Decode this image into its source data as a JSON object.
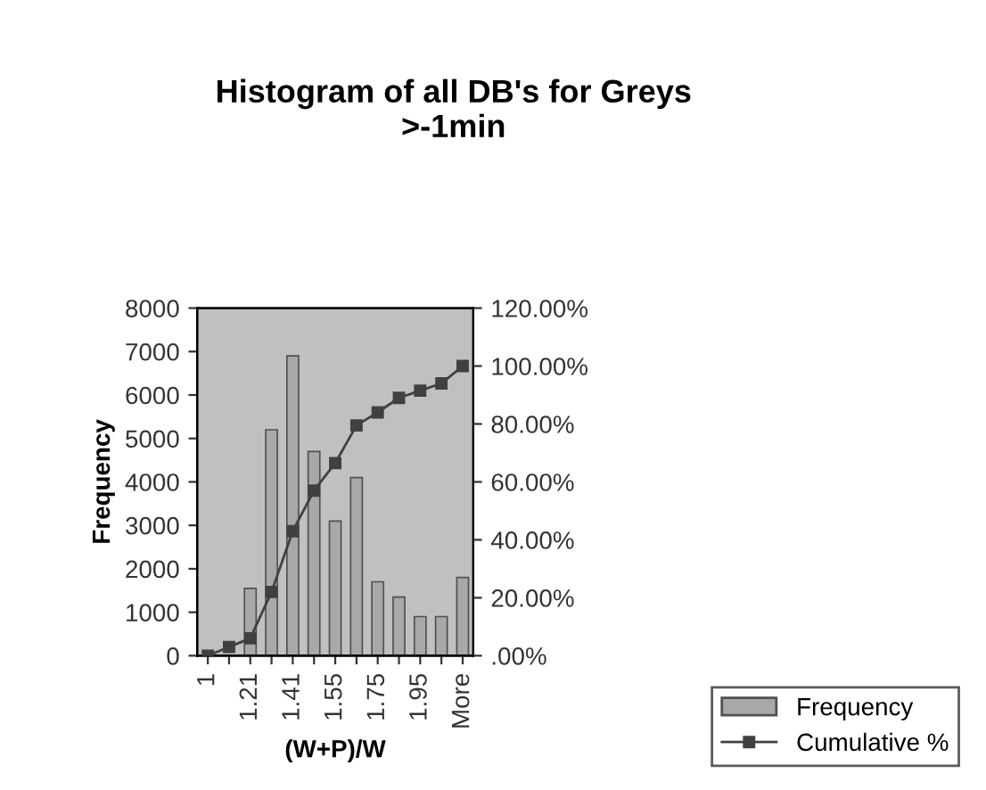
{
  "chart_data": {
    "type": "bar",
    "title": "Histogram of all DB's for Greys\n>-1min",
    "xlabel": "(W+P)/W",
    "ylabel": "Frequency",
    "categories": [
      "1",
      null,
      "1.21",
      null,
      "1.41",
      null,
      "1.55",
      null,
      "1.75",
      null,
      "1.95",
      null,
      "More"
    ],
    "series": [
      {
        "name": "Frequency",
        "color": "#a8a8a8",
        "values": [
          null,
          null,
          1550,
          5200,
          6900,
          4700,
          3100,
          4100,
          1700,
          1350,
          900,
          900,
          1800
        ]
      },
      {
        "name": "Cumulative %",
        "type": "line",
        "axis": "y2",
        "color": "#404040",
        "marker": "square",
        "values": [
          0,
          3,
          6,
          22,
          43,
          57,
          66.5,
          79.5,
          84,
          89,
          91.5,
          94,
          100
        ]
      }
    ],
    "ylim": [
      0,
      8000
    ],
    "yticks": [
      0,
      1000,
      2000,
      3000,
      4000,
      5000,
      6000,
      7000,
      8000
    ],
    "y2lim": [
      0,
      120
    ],
    "y2ticks": [
      {
        "value": 0,
        "label": ".00%"
      },
      {
        "value": 20,
        "label": "20.00%"
      },
      {
        "value": 40,
        "label": "40.00%"
      },
      {
        "value": 60,
        "label": "60.00%"
      },
      {
        "value": 80,
        "label": "80.00%"
      },
      {
        "value": 100,
        "label": "100.00%"
      },
      {
        "value": 120,
        "label": "120.00%"
      }
    ],
    "grid": false,
    "legend": "bottom right"
  }
}
